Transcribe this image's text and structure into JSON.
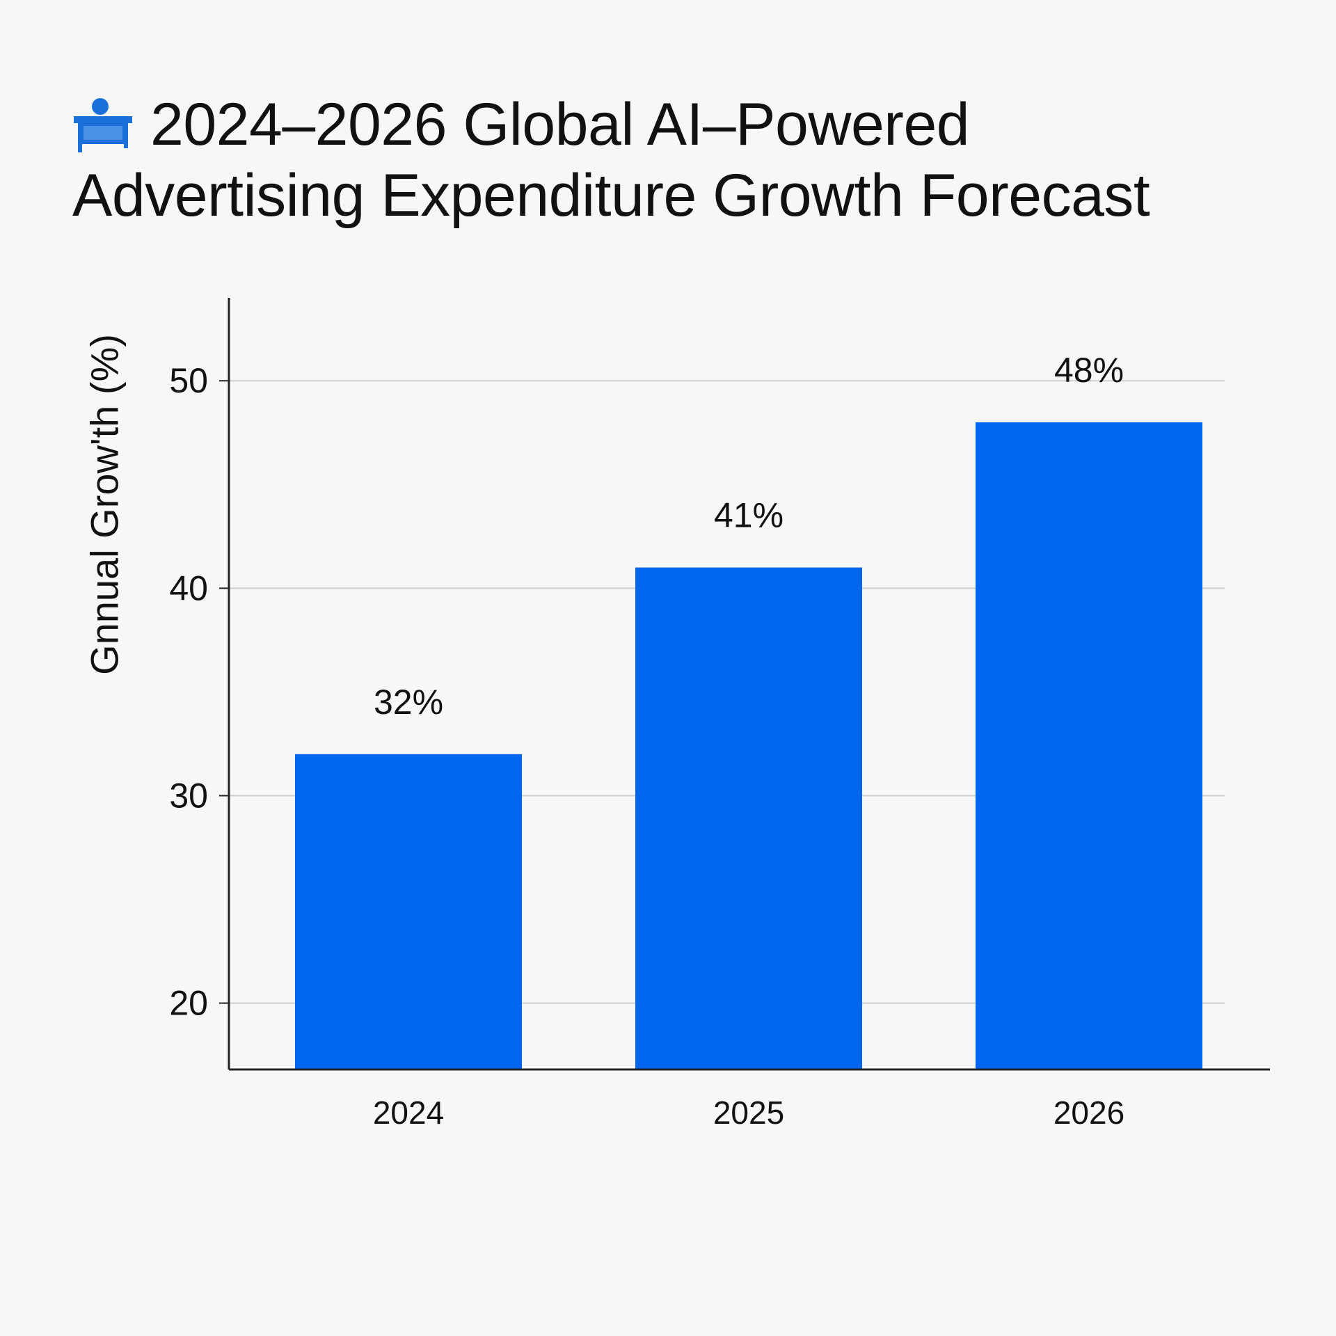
{
  "title": {
    "line1": "2024–2026 Global AI–Powered",
    "line2": "Advertising Expenditure Growth Forecast",
    "icon": "desk-icon"
  },
  "colors": {
    "bar": "#0066ee",
    "axis": "#222222",
    "grid": "#cfcfcf",
    "text": "#111111",
    "icon": "#1a6fd8"
  },
  "chart_data": {
    "type": "bar",
    "title": "2024–2026 Global AI–Powered Advertising Expenditure Growth Forecast",
    "xlabel": "",
    "ylabel": "Gnnual Grow'th (%)",
    "categories": [
      "2024",
      "2025",
      "2026"
    ],
    "values": [
      32,
      41,
      48
    ],
    "value_labels": [
      "32%",
      "41%",
      "48%"
    ],
    "yticks": [
      20,
      30,
      40,
      50
    ],
    "ylim": [
      16.8,
      54
    ],
    "grid": true,
    "legend": "none"
  }
}
